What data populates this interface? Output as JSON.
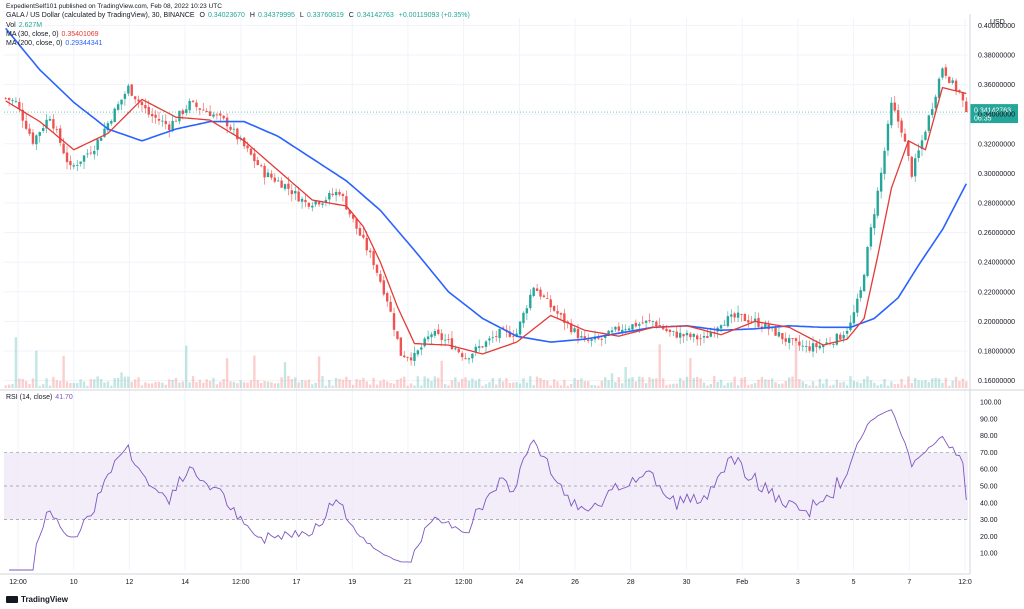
{
  "header": {
    "published": "ExpedientSelf101 published on TradingView.com, Feb 08, 2022 10:23 UTC",
    "symbol": "GALA / US Dollar (calculated by TradingView), 30, BINANCE",
    "o_label": "O",
    "o_value": "0.34023670",
    "h_label": "H",
    "h_value": "0.34379995",
    "l_label": "L",
    "l_value": "0.33760819",
    "c_label": "C",
    "c_value": "0.34142763",
    "change": "+0.00119093 (+0.35%)",
    "vol_label": "Vol",
    "vol_value": "2.627M",
    "ma30_label": "MA (30, close, 0)",
    "ma30_value": "0.35401069",
    "ma200_label": "MA (200, close, 0)",
    "ma200_value": "0.29344341",
    "rsi_label": "RSI (14, close)",
    "rsi_value": "41.70"
  },
  "brand": "TradingView",
  "colors": {
    "up": "#26a69a",
    "down": "#ef5350",
    "ma30": "#e53935",
    "ma200": "#2962ff",
    "rsi": "#7e57c2",
    "rsi_band": "#ede7f6",
    "grid": "#f0f3fa",
    "price_tag": "#26a69a"
  },
  "chart_data": [
    {
      "type": "candlestick",
      "title": "GALA / US Dollar (calculated by TradingView), 30, BINANCE",
      "currency": "USD",
      "y_ticks": [
        "0.16000000",
        "0.18000000",
        "0.20000000",
        "0.22000000",
        "0.24000000",
        "0.26000000",
        "0.28000000",
        "0.30000000",
        "0.32000000",
        "0.34000000",
        "0.36000000",
        "0.38000000",
        "0.40000000"
      ],
      "ylim": [
        0.155,
        0.405
      ],
      "x_ticks": [
        "12:00",
        "10",
        "12",
        "14",
        "12:00",
        "17",
        "19",
        "21",
        "12:00",
        "24",
        "26",
        "28",
        "30",
        "Feb",
        "3",
        "5",
        "7",
        "12:0"
      ],
      "last_price": "0.34142763",
      "last_price_value": 0.34142763,
      "countdown": "06:35",
      "close_keypoints": [
        [
          0,
          0.351
        ],
        [
          3,
          0.348
        ],
        [
          8,
          0.322
        ],
        [
          13,
          0.339
        ],
        [
          19,
          0.303
        ],
        [
          26,
          0.318
        ],
        [
          30,
          0.334
        ],
        [
          36,
          0.358
        ],
        [
          42,
          0.34
        ],
        [
          48,
          0.332
        ],
        [
          54,
          0.347
        ],
        [
          60,
          0.341
        ],
        [
          65,
          0.334
        ],
        [
          70,
          0.318
        ],
        [
          76,
          0.3
        ],
        [
          82,
          0.292
        ],
        [
          88,
          0.28
        ],
        [
          93,
          0.282
        ],
        [
          98,
          0.288
        ],
        [
          103,
          0.263
        ],
        [
          108,
          0.24
        ],
        [
          112,
          0.215
        ],
        [
          116,
          0.178
        ],
        [
          120,
          0.176
        ],
        [
          125,
          0.192
        ],
        [
          130,
          0.186
        ],
        [
          135,
          0.176
        ],
        [
          140,
          0.184
        ],
        [
          145,
          0.192
        ],
        [
          150,
          0.192
        ],
        [
          155,
          0.224
        ],
        [
          160,
          0.21
        ],
        [
          165,
          0.198
        ],
        [
          170,
          0.186
        ],
        [
          175,
          0.188
        ],
        [
          180,
          0.195
        ],
        [
          185,
          0.198
        ],
        [
          190,
          0.2
        ],
        [
          195,
          0.192
        ],
        [
          200,
          0.19
        ],
        [
          205,
          0.188
        ],
        [
          210,
          0.2
        ],
        [
          215,
          0.203
        ],
        [
          220,
          0.2
        ],
        [
          225,
          0.194
        ],
        [
          230,
          0.186
        ],
        [
          235,
          0.182
        ],
        [
          240,
          0.184
        ],
        [
          245,
          0.19
        ],
        [
          248,
          0.198
        ],
        [
          251,
          0.22
        ],
        [
          254,
          0.262
        ],
        [
          257,
          0.3
        ],
        [
          260,
          0.346
        ],
        [
          263,
          0.33
        ],
        [
          266,
          0.3
        ],
        [
          269,
          0.322
        ],
        [
          272,
          0.346
        ],
        [
          275,
          0.372
        ],
        [
          278,
          0.36
        ],
        [
          280,
          0.355
        ],
        [
          282,
          0.341
        ]
      ],
      "ma30_keypoints": [
        [
          0,
          0.349
        ],
        [
          10,
          0.335
        ],
        [
          20,
          0.316
        ],
        [
          30,
          0.327
        ],
        [
          40,
          0.35
        ],
        [
          50,
          0.338
        ],
        [
          60,
          0.336
        ],
        [
          70,
          0.322
        ],
        [
          80,
          0.302
        ],
        [
          90,
          0.282
        ],
        [
          100,
          0.278
        ],
        [
          105,
          0.264
        ],
        [
          110,
          0.24
        ],
        [
          115,
          0.21
        ],
        [
          120,
          0.185
        ],
        [
          130,
          0.184
        ],
        [
          140,
          0.178
        ],
        [
          150,
          0.186
        ],
        [
          160,
          0.204
        ],
        [
          170,
          0.194
        ],
        [
          180,
          0.19
        ],
        [
          190,
          0.196
        ],
        [
          200,
          0.197
        ],
        [
          210,
          0.191
        ],
        [
          220,
          0.2
        ],
        [
          230,
          0.196
        ],
        [
          240,
          0.184
        ],
        [
          247,
          0.188
        ],
        [
          252,
          0.202
        ],
        [
          256,
          0.244
        ],
        [
          260,
          0.29
        ],
        [
          265,
          0.322
        ],
        [
          270,
          0.316
        ],
        [
          275,
          0.358
        ],
        [
          282,
          0.354
        ]
      ],
      "ma200_keypoints": [
        [
          0,
          0.398
        ],
        [
          10,
          0.37
        ],
        [
          20,
          0.348
        ],
        [
          30,
          0.33
        ],
        [
          40,
          0.322
        ],
        [
          50,
          0.33
        ],
        [
          60,
          0.335
        ],
        [
          70,
          0.335
        ],
        [
          80,
          0.325
        ],
        [
          90,
          0.31
        ],
        [
          100,
          0.295
        ],
        [
          110,
          0.275
        ],
        [
          120,
          0.248
        ],
        [
          130,
          0.22
        ],
        [
          140,
          0.202
        ],
        [
          150,
          0.19
        ],
        [
          160,
          0.186
        ],
        [
          170,
          0.188
        ],
        [
          180,
          0.192
        ],
        [
          190,
          0.196
        ],
        [
          200,
          0.197
        ],
        [
          210,
          0.194
        ],
        [
          220,
          0.195
        ],
        [
          230,
          0.197
        ],
        [
          240,
          0.196
        ],
        [
          248,
          0.196
        ],
        [
          255,
          0.202
        ],
        [
          262,
          0.216
        ],
        [
          268,
          0.238
        ],
        [
          275,
          0.262
        ],
        [
          282,
          0.293
        ]
      ]
    },
    {
      "type": "line",
      "title": "RSI (14, close)",
      "y_ticks": [
        "10.00",
        "20.00",
        "30.00",
        "40.00",
        "50.00",
        "60.00",
        "70.00",
        "80.00",
        "90.00",
        "100.00"
      ],
      "ylim": [
        0,
        103
      ],
      "band": [
        30,
        70
      ],
      "midline": 50,
      "last_value": 41.7
    }
  ]
}
